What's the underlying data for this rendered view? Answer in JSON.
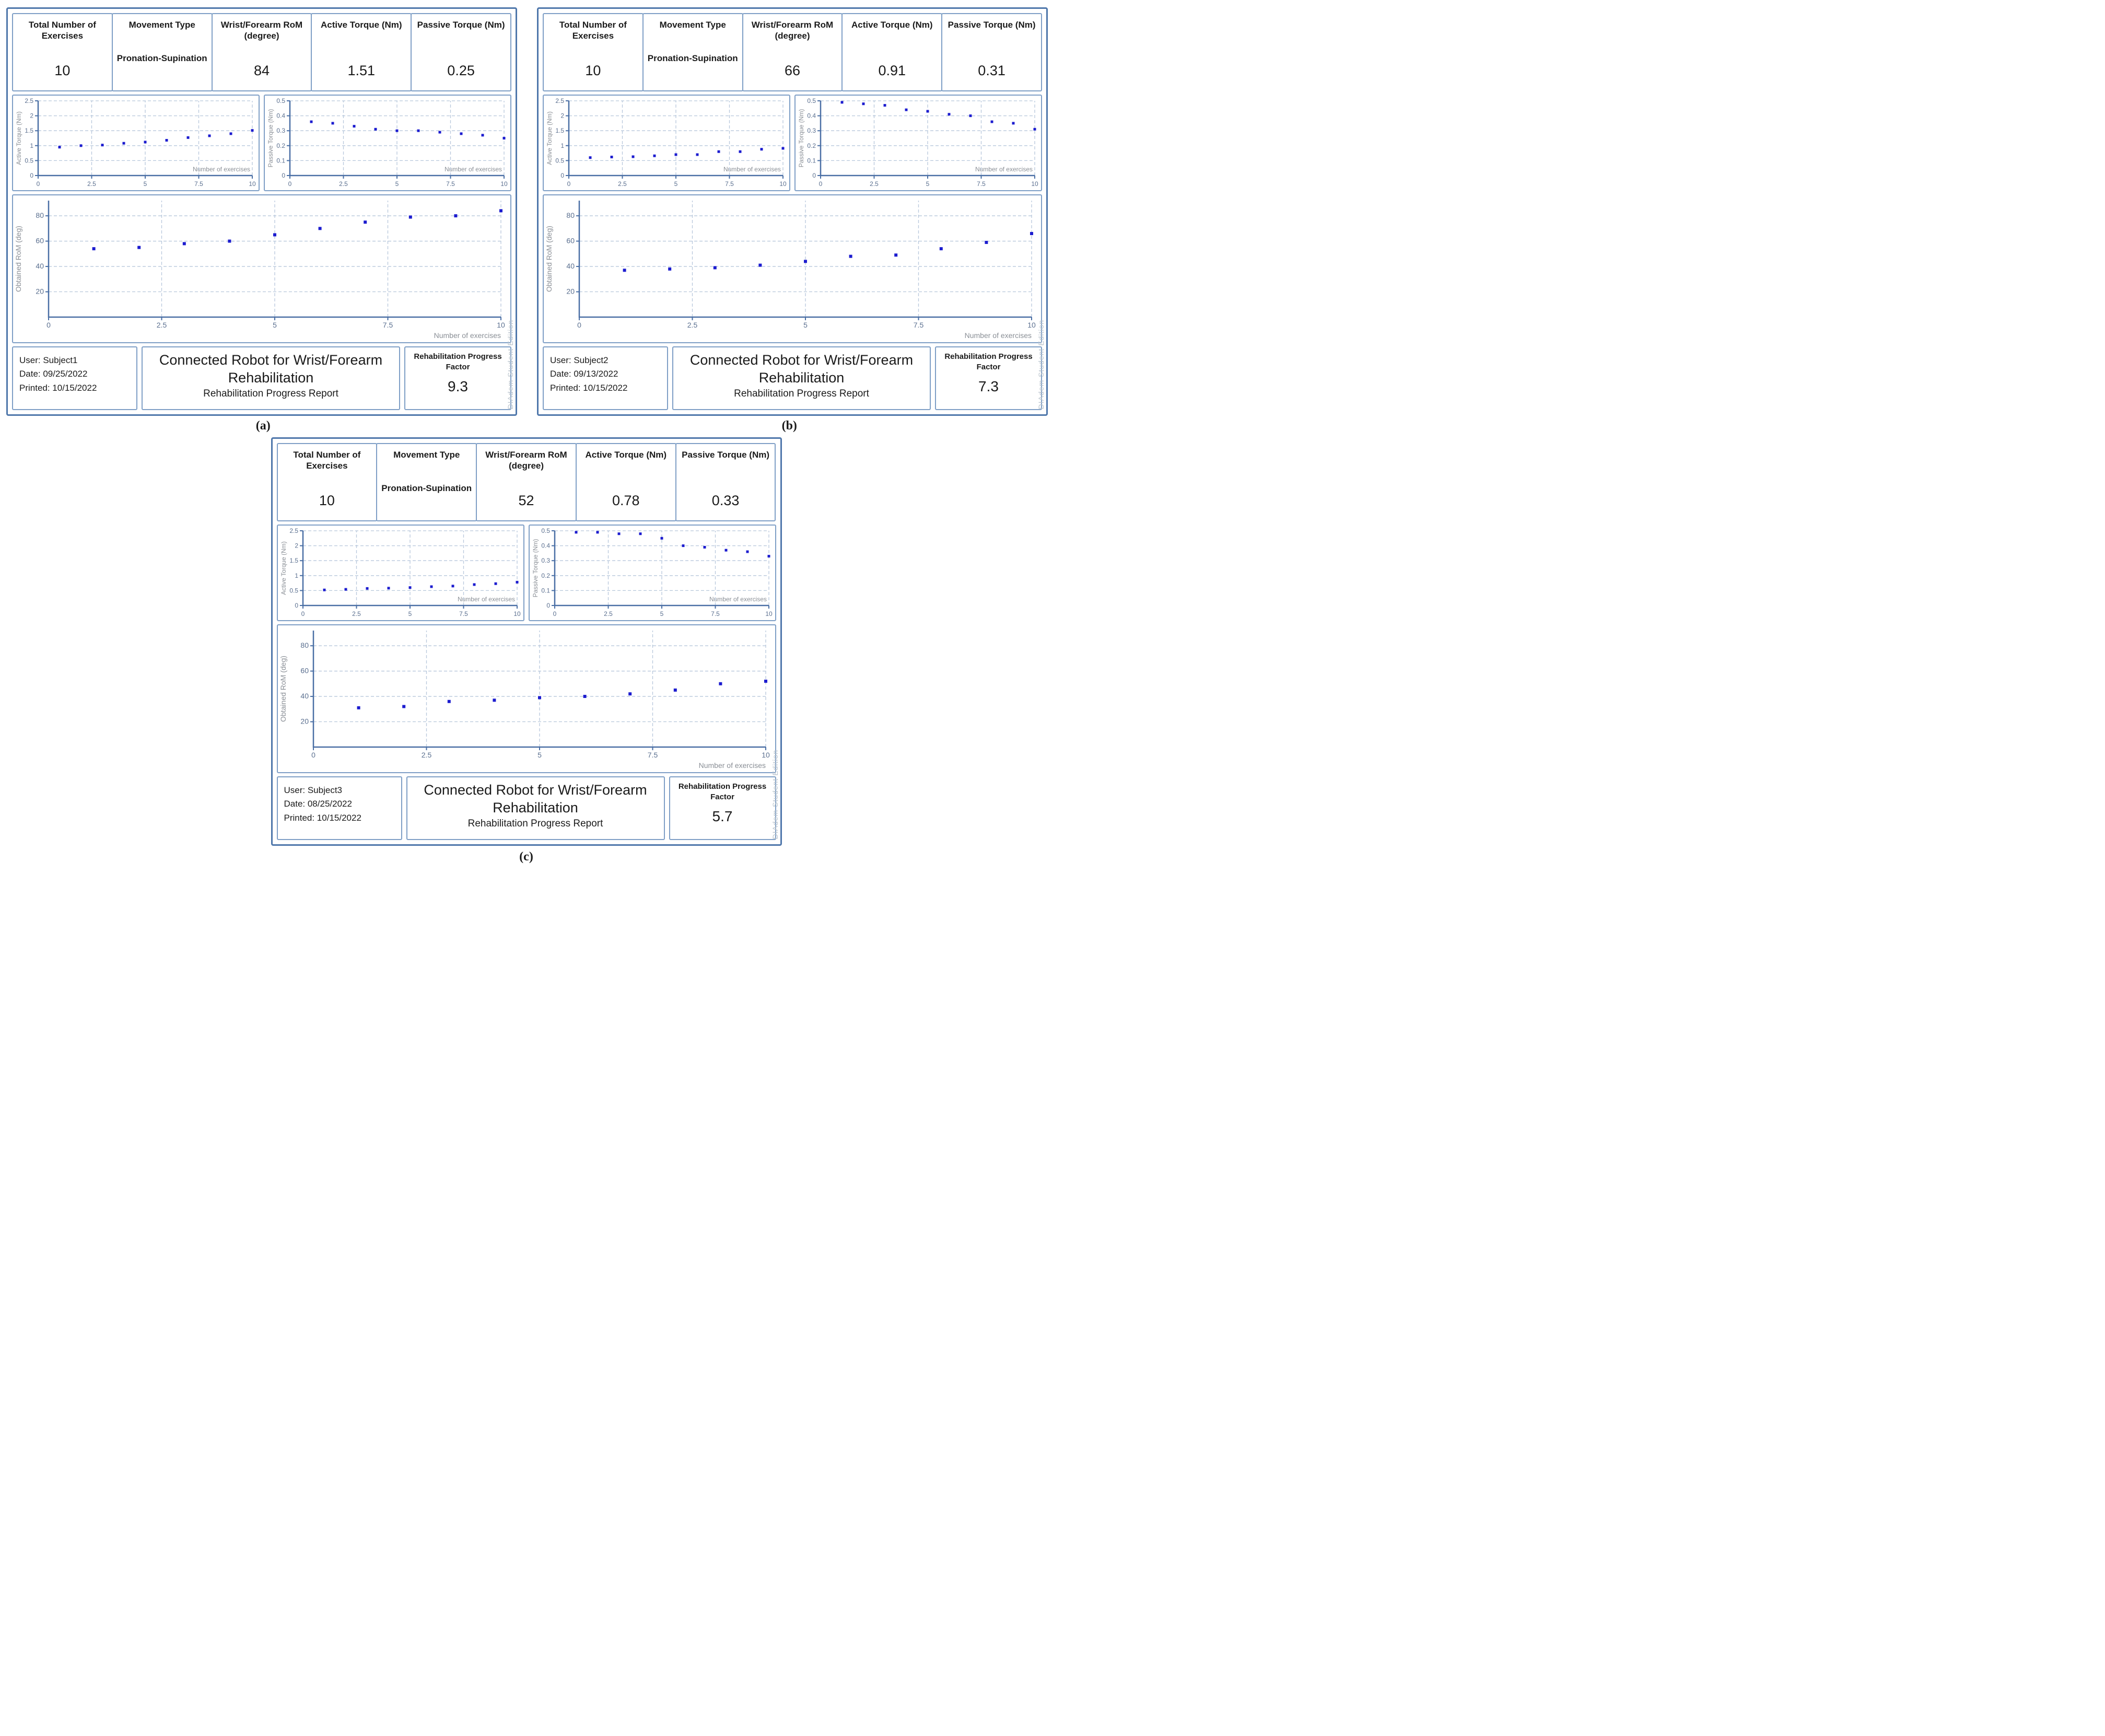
{
  "captions": [
    "(a)",
    "(b)",
    "(c)"
  ],
  "watermark": "DIAdem Student Edition",
  "panels": [
    {
      "header": {
        "cells": [
          {
            "label": "Total Number of Exercises",
            "value": "10"
          },
          {
            "label": "Movement Type",
            "value": "Pronation-Supination"
          },
          {
            "label": "Wrist/Forearm RoM (degree)",
            "value": "84"
          },
          {
            "label": "Active Torque (Nm)",
            "value": "1.51"
          },
          {
            "label": "Passive Torque (Nm)",
            "value": "0.25"
          }
        ]
      },
      "footer": {
        "user": "User: Subject1",
        "date": "Date: 09/25/2022",
        "printed": "Printed: 10/15/2022",
        "title_line1": "Connected Robot for Wrist/Forearm",
        "title_line2": "Rehabilitation",
        "subtitle": "Rehabilitation Progress Report",
        "factor_label": "Rehabilitation Progress Factor",
        "factor_value": "9.3"
      }
    },
    {
      "header": {
        "cells": [
          {
            "label": "Total Number of Exercises",
            "value": "10"
          },
          {
            "label": "Movement Type",
            "value": "Pronation-Supination"
          },
          {
            "label": "Wrist/Forearm RoM (degree)",
            "value": "66"
          },
          {
            "label": "Active Torque (Nm)",
            "value": "0.91"
          },
          {
            "label": "Passive Torque (Nm)",
            "value": "0.31"
          }
        ]
      },
      "footer": {
        "user": "User: Subject2",
        "date": "Date: 09/13/2022",
        "printed": "Printed: 10/15/2022",
        "title_line1": "Connected Robot for Wrist/Forearm",
        "title_line2": "Rehabilitation",
        "subtitle": "Rehabilitation Progress Report",
        "factor_label": "Rehabilitation Progress Factor",
        "factor_value": "7.3"
      }
    },
    {
      "header": {
        "cells": [
          {
            "label": "Total Number of Exercises",
            "value": "10"
          },
          {
            "label": "Movement Type",
            "value": "Pronation-Supination"
          },
          {
            "label": "Wrist/Forearm RoM (degree)",
            "value": "52"
          },
          {
            "label": "Active Torque (Nm)",
            "value": "0.78"
          },
          {
            "label": "Passive Torque (Nm)",
            "value": "0.33"
          }
        ]
      },
      "footer": {
        "user": "User: Subject3",
        "date": "Date: 08/25/2022",
        "printed": "Printed: 10/15/2022",
        "title_line1": "Connected Robot for Wrist/Forearm",
        "title_line2": "Rehabilitation",
        "subtitle": "Rehabilitation Progress Report",
        "factor_label": "Rehabilitation Progress Factor",
        "factor_value": "5.7"
      }
    }
  ],
  "chart_data": [
    {
      "id": "a-active-torque",
      "type": "scatter",
      "x": [
        1,
        2,
        3,
        4,
        5,
        6,
        7,
        8,
        9,
        10
      ],
      "y": [
        0.95,
        1.0,
        1.02,
        1.08,
        1.12,
        1.18,
        1.27,
        1.33,
        1.4,
        1.51
      ],
      "ylabel": "Active Torque (Nm)",
      "xlabel": "Number of exercises",
      "xlim": [
        0,
        10
      ],
      "ylim": [
        0,
        2.5
      ],
      "xticks": [
        0,
        2.5,
        5,
        7.5,
        10
      ],
      "yticks": [
        0,
        0.5,
        1,
        1.5,
        2,
        2.5
      ],
      "grid": true,
      "marker": "square",
      "point_color": "#1c1ccf"
    },
    {
      "id": "a-passive-torque",
      "type": "scatter",
      "x": [
        1,
        2,
        3,
        4,
        5,
        6,
        7,
        8,
        9,
        10
      ],
      "y": [
        0.36,
        0.35,
        0.33,
        0.31,
        0.3,
        0.3,
        0.29,
        0.28,
        0.27,
        0.25
      ],
      "ylabel": "Passive Torque (Nm)",
      "xlabel": "Number of exercises",
      "xlim": [
        0,
        10
      ],
      "ylim": [
        0,
        0.5
      ],
      "xticks": [
        0,
        2.5,
        5,
        7.5,
        10
      ],
      "yticks": [
        0,
        0.1,
        0.2,
        0.3,
        0.4,
        0.5
      ],
      "grid": true,
      "marker": "square",
      "point_color": "#1c1ccf"
    },
    {
      "id": "a-obtained-rom",
      "type": "scatter",
      "x": [
        1,
        2,
        3,
        4,
        5,
        6,
        7,
        8,
        9,
        10
      ],
      "y": [
        54,
        55,
        58,
        60,
        65,
        70,
        75,
        79,
        80,
        84
      ],
      "ylabel": "Obtained RoM (deg)",
      "xlabel": "Number of exercises",
      "xlim": [
        0,
        10
      ],
      "ylim": [
        0,
        92
      ],
      "xticks": [
        0,
        2.5,
        5,
        7.5,
        10
      ],
      "yticks": [
        20,
        40,
        60,
        80
      ],
      "grid": true,
      "marker": "square",
      "point_color": "#1c1ccf"
    },
    {
      "id": "b-active-torque",
      "type": "scatter",
      "x": [
        1,
        2,
        3,
        4,
        5,
        6,
        7,
        8,
        9,
        10
      ],
      "y": [
        0.6,
        0.62,
        0.63,
        0.66,
        0.7,
        0.7,
        0.8,
        0.8,
        0.88,
        0.91
      ],
      "ylabel": "Active Torque (Nm)",
      "xlabel": "Number of exercises",
      "xlim": [
        0,
        10
      ],
      "ylim": [
        0,
        2.5
      ],
      "xticks": [
        0,
        2.5,
        5,
        7.5,
        10
      ],
      "yticks": [
        0,
        0.5,
        1,
        1.5,
        2,
        2.5
      ],
      "grid": true,
      "marker": "square",
      "point_color": "#1c1ccf"
    },
    {
      "id": "b-passive-torque",
      "type": "scatter",
      "x": [
        1,
        2,
        3,
        4,
        5,
        6,
        7,
        8,
        9,
        10
      ],
      "y": [
        0.49,
        0.48,
        0.47,
        0.44,
        0.43,
        0.41,
        0.4,
        0.36,
        0.35,
        0.31
      ],
      "ylabel": "Passive Torque (Nm)",
      "xlabel": "Number of exercises",
      "xlim": [
        0,
        10
      ],
      "ylim": [
        0,
        0.5
      ],
      "xticks": [
        0,
        2.5,
        5,
        7.5,
        10
      ],
      "yticks": [
        0,
        0.1,
        0.2,
        0.3,
        0.4,
        0.5
      ],
      "grid": true,
      "marker": "square",
      "point_color": "#1c1ccf"
    },
    {
      "id": "b-obtained-rom",
      "type": "scatter",
      "x": [
        1,
        2,
        3,
        4,
        5,
        6,
        7,
        8,
        9,
        10
      ],
      "y": [
        37,
        38,
        39,
        41,
        44,
        48,
        49,
        54,
        59,
        66
      ],
      "ylabel": "Obtained RoM (deg)",
      "xlabel": "Number of exercises",
      "xlim": [
        0,
        10
      ],
      "ylim": [
        0,
        92
      ],
      "xticks": [
        0,
        2.5,
        5,
        7.5,
        10
      ],
      "yticks": [
        20,
        40,
        60,
        80
      ],
      "grid": true,
      "marker": "square",
      "point_color": "#1c1ccf"
    },
    {
      "id": "c-active-torque",
      "type": "scatter",
      "x": [
        1,
        2,
        3,
        4,
        5,
        6,
        7,
        8,
        9,
        10
      ],
      "y": [
        0.52,
        0.54,
        0.57,
        0.58,
        0.6,
        0.63,
        0.65,
        0.7,
        0.73,
        0.78
      ],
      "ylabel": "Active Torque (Nm)",
      "xlabel": "Number of exercises",
      "xlim": [
        0,
        10
      ],
      "ylim": [
        0,
        2.5
      ],
      "xticks": [
        0,
        2.5,
        5,
        7.5,
        10
      ],
      "yticks": [
        0,
        0.5,
        1,
        1.5,
        2,
        2.5
      ],
      "grid": true,
      "marker": "square",
      "point_color": "#1c1ccf"
    },
    {
      "id": "c-passive-torque",
      "type": "scatter",
      "x": [
        1,
        2,
        3,
        4,
        5,
        6,
        7,
        8,
        9,
        10
      ],
      "y": [
        0.49,
        0.49,
        0.48,
        0.48,
        0.45,
        0.4,
        0.39,
        0.37,
        0.36,
        0.33
      ],
      "ylabel": "Passive Torque (Nm)",
      "xlabel": "Number of exercises",
      "xlim": [
        0,
        10
      ],
      "ylim": [
        0,
        0.5
      ],
      "xticks": [
        0,
        2.5,
        5,
        7.5,
        10
      ],
      "yticks": [
        0,
        0.1,
        0.2,
        0.3,
        0.4,
        0.5
      ],
      "grid": true,
      "marker": "square",
      "point_color": "#1c1ccf"
    },
    {
      "id": "c-obtained-rom",
      "type": "scatter",
      "x": [
        1,
        2,
        3,
        4,
        5,
        6,
        7,
        8,
        9,
        10
      ],
      "y": [
        31,
        32,
        36,
        37,
        39,
        40,
        42,
        45,
        50,
        52
      ],
      "ylabel": "Obtained RoM (deg)",
      "xlabel": "Number of exercises",
      "xlim": [
        0,
        10
      ],
      "ylim": [
        0,
        92
      ],
      "xticks": [
        0,
        2.5,
        5,
        7.5,
        10
      ],
      "yticks": [
        20,
        40,
        60,
        80
      ],
      "grid": true,
      "marker": "square",
      "point_color": "#1c1ccf"
    }
  ]
}
